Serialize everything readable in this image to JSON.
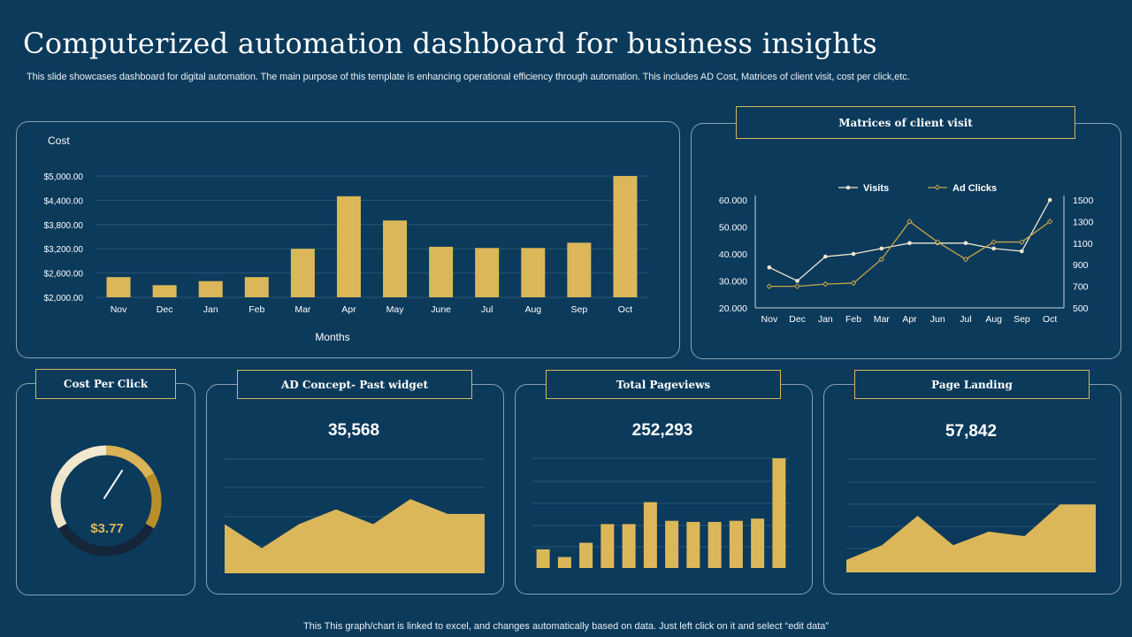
{
  "header": {
    "title": "Computerized automation dashboard for business insights",
    "subtitle": "This slide showcases dashboard for digital automation. The main purpose of this template is enhancing operational efficiency through automation. This includes AD Cost, Matrices of client visit, cost per click,etc."
  },
  "footer": {
    "note": "This This graph/chart is linked to excel,  and changes automatically based on data. Just left click on it and select “edit data”"
  },
  "colors": {
    "background": "#0b3a5b",
    "gold": "#dcb759",
    "light_line": "#f1e7d0",
    "border": "#8aa0b0"
  },
  "widgets": {
    "cost_per_click": {
      "title": "Cost Per Click",
      "value": "$3.77",
      "gauge_fraction": 0.75
    },
    "ad_concept": {
      "title": "AD Concept- Past widget",
      "value": "35,568"
    },
    "total_pageviews": {
      "title": "Total  Pageviews",
      "value": "252,293"
    },
    "page_landing": {
      "title": "Page Landing",
      "value": "57,842"
    },
    "client_visit": {
      "title": "Matrices of client visit"
    }
  },
  "chart_data": [
    {
      "id": "cost",
      "type": "bar",
      "title": "Cost",
      "xlabel": "Months",
      "categories": [
        "Nov",
        "Dec",
        "Jan",
        "Feb",
        "Mar",
        "Apr",
        "May",
        "June",
        "Jul",
        "Aug",
        "Sep",
        "Oct"
      ],
      "values": [
        2500,
        2300,
        2400,
        2500,
        3200,
        4500,
        3900,
        3250,
        3220,
        3220,
        3350,
        5000
      ],
      "yticks": [
        "$2,000.00",
        "$2,600.00",
        "$3,200.00",
        "$3,800.00",
        "$4,400.00",
        "$5,000.00"
      ],
      "ylim": [
        2000,
        5000
      ]
    },
    {
      "id": "visits",
      "type": "line",
      "title": "Matrices of client visit",
      "categories": [
        "Nov",
        "Dec",
        "Jan",
        "Feb",
        "Mar",
        "Apr",
        "Jun",
        "Jul",
        "Aug",
        "Sep",
        "Oct"
      ],
      "series": [
        {
          "name": "Visits",
          "axis": "left",
          "values": [
            35,
            30,
            39,
            40,
            42,
            44,
            44,
            44,
            42,
            41,
            60
          ]
        },
        {
          "name": "Ad Clicks",
          "axis": "right",
          "values": [
            700,
            700,
            720,
            730,
            950,
            1300,
            1110,
            950,
            1110,
            1110,
            1300
          ]
        }
      ],
      "yticks_left": [
        "20.000",
        "30.000",
        "40.000",
        "50.000",
        "60.000"
      ],
      "ylim_left": [
        20,
        60
      ],
      "yticks_right": [
        "500",
        "700",
        "900",
        "1100",
        "1300",
        "1500"
      ],
      "ylim_right": [
        500,
        1500
      ]
    },
    {
      "id": "ad_concept_area",
      "type": "area",
      "values": [
        43,
        22,
        43,
        56,
        43,
        65,
        52,
        52
      ],
      "ylim": [
        0,
        100
      ]
    },
    {
      "id": "pageviews_bars",
      "type": "bar",
      "values": [
        17,
        10,
        23,
        40,
        40,
        60,
        43,
        42,
        42,
        43,
        45,
        100
      ],
      "ylim": [
        0,
        100
      ]
    },
    {
      "id": "page_landing_area",
      "type": "area",
      "values": [
        11,
        24,
        50,
        24,
        36,
        32,
        60,
        60
      ],
      "ylim": [
        0,
        100
      ]
    }
  ]
}
